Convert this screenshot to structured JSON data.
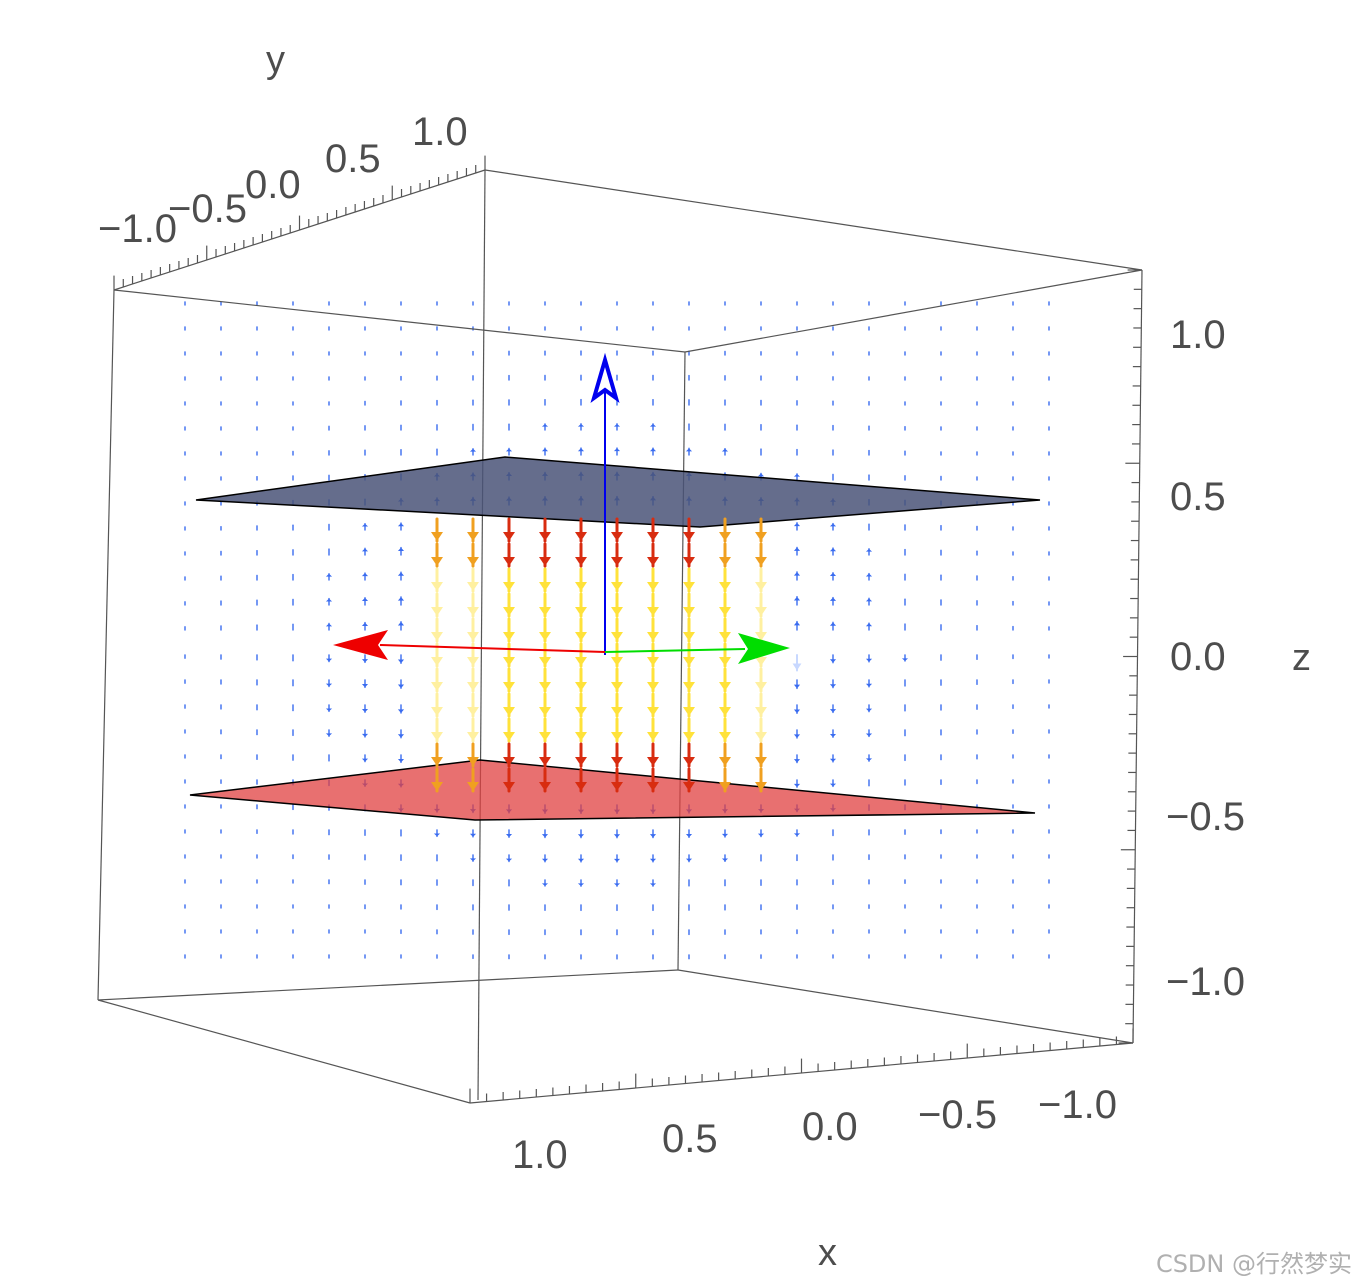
{
  "chart_data": {
    "type": "vector-field-3d",
    "title": "",
    "axes": {
      "x": {
        "label": "x",
        "ticks": [
          "1.0",
          "0.5",
          "0.0",
          "−0.5",
          "−1.0"
        ],
        "range": [
          -1,
          1
        ]
      },
      "y": {
        "label": "y",
        "ticks": [
          "−1.0",
          "−0.5",
          "0.0",
          "0.5",
          "1.0"
        ],
        "range": [
          -1,
          1
        ]
      },
      "z": {
        "label": "z",
        "ticks": [
          "1.0",
          "0.5",
          "0.0",
          "−0.5",
          "−1.0"
        ],
        "range": [
          -1,
          1
        ]
      }
    },
    "planes": [
      {
        "name": "top-plate",
        "z": 0.5,
        "color": "#4a5478"
      },
      {
        "name": "bottom-plate",
        "z": -0.5,
        "color": "#e04040"
      }
    ],
    "frame_arrows": [
      {
        "name": "z-unit-arrow",
        "color": "#0000ee"
      },
      {
        "name": "x-unit-arrow",
        "color": "#ee0000"
      },
      {
        "name": "y-unit-arrow",
        "color": "#00dd00"
      }
    ],
    "field_colors": {
      "weak": "#3a6cf0",
      "medium": "#c8d8ff",
      "strong": "#ffe23a",
      "strongest": "#d82c10"
    }
  },
  "watermark": "CSDN @行然梦实"
}
